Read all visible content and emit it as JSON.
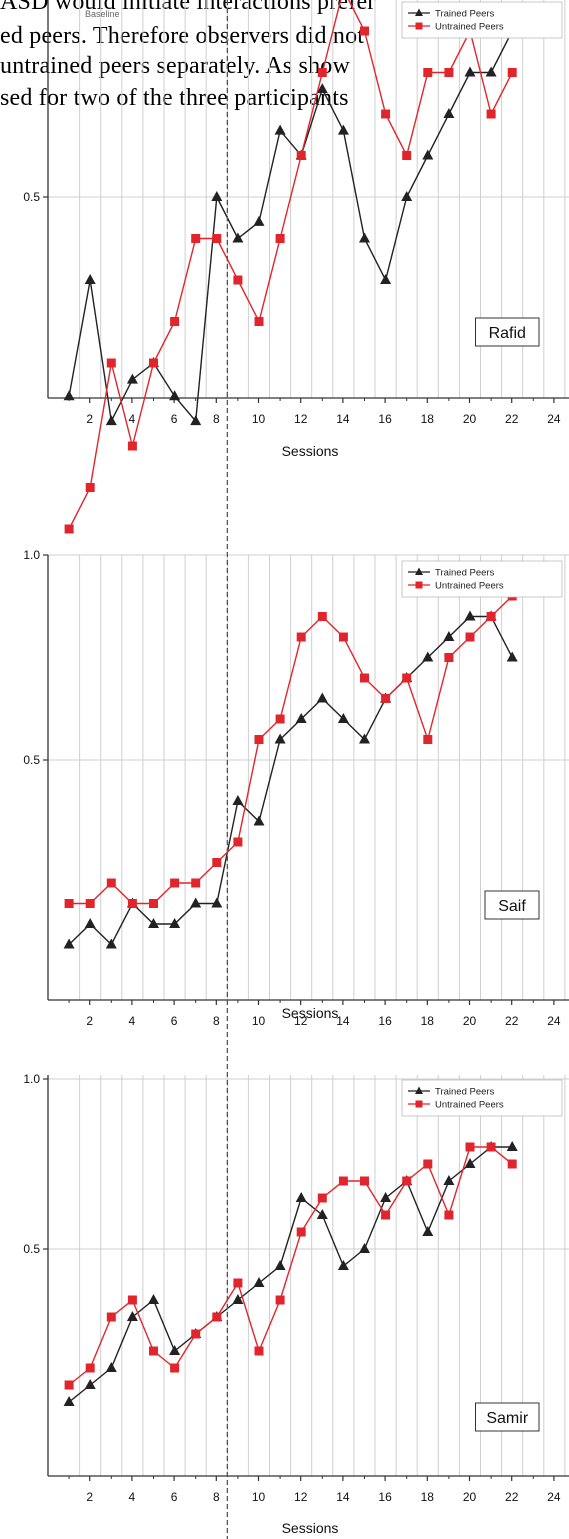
{
  "document": {
    "lines": [
      "ASD would initiate interactions prefer",
      "ed peers. Therefore observers did not",
      "untrained peers separately. As show",
      "sed for two of the three participants"
    ]
  },
  "phase_labels": {
    "baseline": "Baseline"
  },
  "colors": {
    "trained": "#222222",
    "untrained": "#e0262c",
    "grid": "#cfcfcf",
    "axis": "#333333",
    "phase_line": "#555555"
  },
  "chart_data": [
    {
      "type": "line",
      "participant": "Rafid",
      "xlabel": "Sessions",
      "ylabel": "",
      "x_ticks": [
        2,
        4,
        6,
        8,
        10,
        12,
        14,
        16,
        18,
        20,
        22,
        24
      ],
      "y_ticks": [
        "0.5"
      ],
      "y_tick_values": [
        0.5
      ],
      "xlim": [
        0,
        24.5
      ],
      "ylim": [
        0.08,
        0.75
      ],
      "grid": true,
      "legend_position": "top-right",
      "phase_change_after_session": 8.5,
      "series": [
        {
          "name": "Trained Peers",
          "marker": "triangle",
          "color_key": "trained",
          "x": [
            1,
            2,
            3,
            4,
            5,
            6,
            7,
            8,
            9,
            10,
            11,
            12,
            13,
            14,
            15,
            16,
            17,
            18,
            19,
            20,
            21,
            22
          ],
          "values": [
            0.26,
            0.4,
            0.23,
            0.28,
            0.3,
            0.26,
            0.23,
            0.5,
            0.45,
            0.47,
            0.58,
            0.55,
            0.63,
            0.58,
            0.45,
            0.4,
            0.5,
            0.55,
            0.6,
            0.65,
            0.65,
            0.7
          ]
        },
        {
          "name": "Untrained Peers",
          "marker": "square",
          "color_key": "untrained",
          "x": [
            1,
            2,
            3,
            4,
            5,
            6,
            7,
            8,
            9,
            10,
            11,
            12,
            13,
            14,
            15,
            16,
            17,
            18,
            19,
            20,
            21,
            22
          ],
          "values": [
            0.1,
            0.15,
            0.3,
            0.2,
            0.3,
            0.35,
            0.45,
            0.45,
            0.4,
            0.35,
            0.45,
            0.55,
            0.65,
            0.75,
            0.7,
            0.6,
            0.55,
            0.65,
            0.65,
            0.7,
            0.6,
            0.65
          ]
        }
      ]
    },
    {
      "type": "line",
      "participant": "Saif",
      "xlabel": "Sessions",
      "ylabel": "",
      "x_ticks": [
        2,
        4,
        6,
        8,
        10,
        12,
        14,
        16,
        18,
        20,
        22,
        24
      ],
      "y_ticks": [
        "1.0",
        "0.5"
      ],
      "y_tick_values": [
        1.0,
        0.5
      ],
      "xlim": [
        0,
        24.5
      ],
      "ylim": [
        0,
        1.0
      ],
      "grid": true,
      "legend_position": "top-right",
      "phase_change_after_session": 8.5,
      "series": [
        {
          "name": "Trained Peers",
          "marker": "triangle",
          "color_key": "trained",
          "x": [
            1,
            2,
            3,
            4,
            5,
            6,
            7,
            8,
            9,
            10,
            11,
            12,
            13,
            14,
            15,
            16,
            17,
            18,
            19,
            20,
            21,
            22
          ],
          "values": [
            0.05,
            0.1,
            0.05,
            0.15,
            0.1,
            0.1,
            0.15,
            0.15,
            0.4,
            0.35,
            0.55,
            0.6,
            0.65,
            0.6,
            0.55,
            0.65,
            0.7,
            0.75,
            0.8,
            0.85,
            0.85,
            0.75
          ]
        },
        {
          "name": "Untrained Peers",
          "marker": "square",
          "color_key": "untrained",
          "x": [
            1,
            2,
            3,
            4,
            5,
            6,
            7,
            8,
            9,
            10,
            11,
            12,
            13,
            14,
            15,
            16,
            17,
            18,
            19,
            20,
            21,
            22
          ],
          "values": [
            0.15,
            0.15,
            0.2,
            0.15,
            0.15,
            0.2,
            0.2,
            0.25,
            0.3,
            0.55,
            0.6,
            0.8,
            0.85,
            0.8,
            0.7,
            0.65,
            0.7,
            0.55,
            0.75,
            0.8,
            0.85,
            0.9
          ]
        }
      ]
    },
    {
      "type": "line",
      "participant": "Samir",
      "xlabel": "Sessions",
      "ylabel": "",
      "x_ticks": [
        2,
        4,
        6,
        8,
        10,
        12,
        14,
        16,
        18,
        20,
        22,
        24
      ],
      "y_ticks": [
        "1.0",
        "0.5"
      ],
      "y_tick_values": [
        1.0,
        0.5
      ],
      "xlim": [
        0,
        24.5
      ],
      "ylim": [
        0,
        1.0
      ],
      "grid": true,
      "legend_position": "top-right",
      "phase_change_after_session": 8.5,
      "series": [
        {
          "name": "Trained Peers",
          "marker": "triangle",
          "color_key": "trained",
          "x": [
            1,
            2,
            3,
            4,
            5,
            6,
            7,
            8,
            9,
            10,
            11,
            12,
            13,
            14,
            15,
            16,
            17,
            18,
            19,
            20,
            21,
            22
          ],
          "values": [
            0.05,
            0.1,
            0.15,
            0.3,
            0.35,
            0.2,
            0.25,
            0.3,
            0.35,
            0.4,
            0.45,
            0.65,
            0.6,
            0.45,
            0.5,
            0.65,
            0.7,
            0.55,
            0.7,
            0.75,
            0.8,
            0.8
          ]
        },
        {
          "name": "Untrained Peers",
          "marker": "square",
          "color_key": "untrained",
          "x": [
            1,
            2,
            3,
            4,
            5,
            6,
            7,
            8,
            9,
            10,
            11,
            12,
            13,
            14,
            15,
            16,
            17,
            18,
            19,
            20,
            21,
            22
          ],
          "values": [
            0.1,
            0.15,
            0.3,
            0.35,
            0.2,
            0.15,
            0.25,
            0.3,
            0.4,
            0.2,
            0.35,
            0.55,
            0.65,
            0.7,
            0.7,
            0.6,
            0.7,
            0.75,
            0.6,
            0.8,
            0.8,
            0.75
          ]
        }
      ]
    }
  ]
}
